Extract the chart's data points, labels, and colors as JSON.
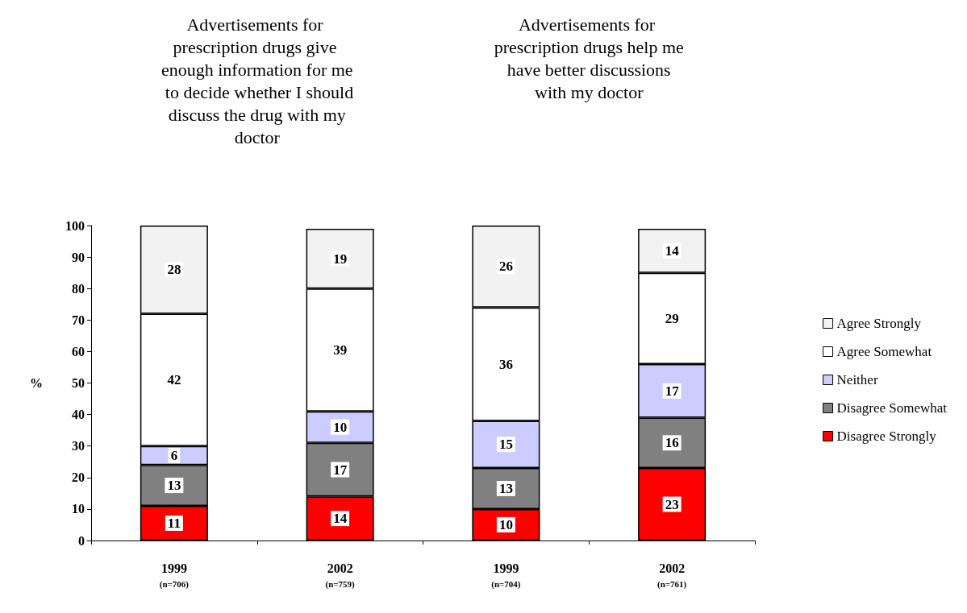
{
  "chart_data": {
    "type": "bar",
    "stacked": true,
    "ylabel": "%",
    "annotations": [
      "Advertisements for prescription drugs give enough information for me to decide whether I should discuss the drug with my doctor",
      "Advertisements for prescription drugs help me have better discussions with my doctor"
    ],
    "categories": [
      "1999\n(n=706)",
      "2002\n(n=759)",
      "1999\n(n=704)",
      "2002\n(n=761)"
    ],
    "series": [
      {
        "name": "Disagree Strongly",
        "color": "#ff0000",
        "values": [
          11,
          14,
          10,
          23
        ]
      },
      {
        "name": "Disagree Somewhat",
        "color": "#808080",
        "values": [
          13,
          17,
          13,
          16
        ]
      },
      {
        "name": "Neither",
        "color": "#ccccff",
        "values": [
          6,
          10,
          15,
          17
        ]
      },
      {
        "name": "Agree Somewhat",
        "color": "#ffffff",
        "values": [
          42,
          39,
          36,
          29
        ]
      },
      {
        "name": "Agree Strongly",
        "color": "#f2f2f2",
        "values": [
          28,
          19,
          26,
          14
        ]
      }
    ],
    "ylim": [
      0,
      100
    ],
    "yticks": [
      0,
      10,
      20,
      30,
      40,
      50,
      60,
      70,
      80,
      90,
      100
    ],
    "grid": false,
    "legend": "right",
    "data_labels": true
  }
}
